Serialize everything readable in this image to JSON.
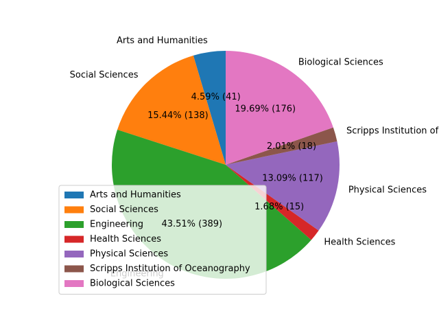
{
  "chart_data": {
    "type": "pie",
    "title": "",
    "labels": [
      "Arts and Humanities",
      "Social Sciences",
      "Engineering",
      "Health Sciences",
      "Physical Sciences",
      "Scripps Institution of Oceanography",
      "Biological Sciences"
    ],
    "values": [
      41,
      138,
      389,
      15,
      117,
      18,
      176
    ],
    "percent_labels": [
      "4.59%  (41)",
      "15.44%  (138)",
      "43.51%  (389)",
      "1.68%  (15)",
      "13.09%  (117)",
      "2.01%  (18)",
      "19.69%  (176)"
    ],
    "colors": [
      "#1f77b4",
      "#ff7f0e",
      "#2ca02c",
      "#d62728",
      "#9467bd",
      "#8c564b",
      "#e377c2"
    ],
    "start_angle_deg": 90,
    "direction": "counterclockwise",
    "legend": {
      "position": "lower-left",
      "entries": [
        "Arts and Humanities",
        "Social Sciences",
        "Engineering",
        "Health Sciences",
        "Physical Sciences",
        "Scripps Institution of Oceanography",
        "Biological Sciences"
      ]
    }
  }
}
